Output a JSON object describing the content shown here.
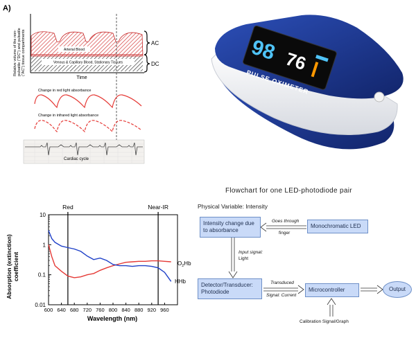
{
  "panel_a": {
    "label": "A)",
    "ac_label": "AC",
    "dc_label": "DC",
    "y_axis_label": [
      "Relative volume of the non-",
      "pulsatile (\"DC\") and pulsatile",
      "(\"AC\") tissue compartments"
    ],
    "time_label": "Time",
    "arterial_label": "Arterial Blood",
    "venous_label": "Venous & Capillary Blood, Stationary Tissues",
    "red_absorbance_label": "Change in red light absorbance",
    "ir_absorbance_label": "Change in infrared light absorbance",
    "cardiac_label": "Cardiac cycle"
  },
  "oximeter": {
    "reading_spo2": "98",
    "reading_pulse": "76",
    "brand_text": "PULSE OXIMETER",
    "colors": {
      "body": "#1e3a8a",
      "shell": "#f2f2f4",
      "screen": "#0a0a0a",
      "spo2_digits": "#4fc3f7",
      "pulse_digits": "#ffffff"
    }
  },
  "absorption_chart": {
    "title_lines": [
      "Absorption (extinction)",
      "coefficient"
    ],
    "xlabel": "Wavelength (nm)",
    "x_ticks": [
      "600",
      "640",
      "680",
      "720",
      "760",
      "800",
      "840",
      "880",
      "920",
      "960"
    ],
    "y_ticks": [
      "10",
      "1",
      "0.1",
      "0.01"
    ],
    "red_marker": "Red",
    "nir_marker": "Near-IR",
    "o2hb_label": "O",
    "o2hb_sub": "2",
    "o2hb_suffix": "Hb",
    "hhb_label": "HHb"
  },
  "chart_data": {
    "type": "line",
    "title": "",
    "xlabel": "Wavelength (nm)",
    "ylabel": "Absorption (extinction) coefficient",
    "xlim": [
      600,
      1000
    ],
    "ylim": [
      0.01,
      10
    ],
    "y_scale": "log",
    "grid": false,
    "colors": {
      "O2Hb": "#e53935",
      "HHb": "#1e40c8"
    },
    "series": [
      {
        "name": "O2Hb",
        "x": [
          600,
          610,
          620,
          640,
          660,
          680,
          700,
          720,
          740,
          760,
          780,
          800,
          820,
          840,
          860,
          880,
          900,
          920,
          940,
          960,
          980
        ],
        "values": [
          1.0,
          0.4,
          0.2,
          0.13,
          0.09,
          0.08,
          0.085,
          0.1,
          0.11,
          0.14,
          0.17,
          0.2,
          0.23,
          0.26,
          0.27,
          0.28,
          0.28,
          0.29,
          0.29,
          0.28,
          0.27
        ]
      },
      {
        "name": "HHb",
        "x": [
          600,
          610,
          620,
          640,
          660,
          680,
          700,
          720,
          740,
          760,
          780,
          800,
          820,
          840,
          860,
          880,
          900,
          920,
          940,
          960,
          980
        ],
        "values": [
          3.0,
          1.6,
          1.2,
          0.9,
          0.8,
          0.72,
          0.6,
          0.42,
          0.32,
          0.36,
          0.3,
          0.22,
          0.2,
          0.2,
          0.19,
          0.2,
          0.2,
          0.19,
          0.17,
          0.12,
          0.06
        ]
      }
    ],
    "markers": [
      {
        "label": "Red",
        "x": 660
      },
      {
        "label": "Near-IR",
        "x": 940
      }
    ]
  },
  "flowchart": {
    "title": "Flowchart for one LED-photodiode pair",
    "physical_variable": "Physical Variable: Intensity",
    "box_intensity": "Intensity change due to absorbance",
    "box_led": "Monochromatic LED",
    "box_detector": "Detector/Transducer: Photodiode",
    "box_micro": "Microcontroller",
    "box_output": "Output",
    "label_goes_through": "Goes through",
    "label_finger": "finger",
    "label_input_signal": "Input signal:",
    "label_light": "Light",
    "label_transduced": "Transduced",
    "label_signal_current": "Signal: Current",
    "label_calibration": "Calibration Signal/Graph"
  }
}
